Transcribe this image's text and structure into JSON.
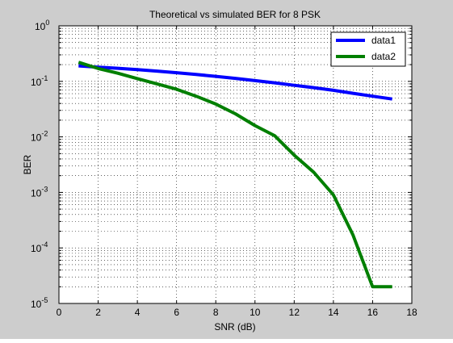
{
  "chart_data": {
    "type": "line",
    "title": "Theoretical vs simulated BER for 8 PSK",
    "xlabel": "SNR (dB)",
    "ylabel": "BER",
    "xlim": [
      0,
      18
    ],
    "ylim": [
      1e-05,
      1
    ],
    "yscale": "log",
    "xticks": [
      "0",
      "2",
      "4",
      "6",
      "8",
      "10",
      "12",
      "14",
      "16",
      "18"
    ],
    "ytick_exponents": [
      "0",
      "-1",
      "-2",
      "-3",
      "-4",
      "-5"
    ],
    "ytick_base": "10",
    "grid": true,
    "legend": "top-right",
    "series": [
      {
        "name": "data1",
        "color": "#0000ff",
        "x": [
          1,
          2,
          3,
          4,
          5,
          6,
          7,
          8,
          9,
          10,
          11,
          12,
          13,
          14,
          15,
          16,
          17
        ],
        "y": [
          0.19,
          0.18,
          0.172,
          0.163,
          0.153,
          0.143,
          0.133,
          0.123,
          0.113,
          0.103,
          0.094,
          0.085,
          0.077,
          0.069,
          0.061,
          0.054,
          0.048
        ]
      },
      {
        "name": "data2",
        "color": "#007f00",
        "x": [
          1,
          2,
          3,
          4,
          5,
          6,
          7,
          8,
          9,
          10,
          11,
          12,
          13,
          14,
          15,
          16,
          17
        ],
        "y": [
          0.22,
          0.17,
          0.14,
          0.112,
          0.09,
          0.072,
          0.054,
          0.039,
          0.026,
          0.016,
          0.0105,
          0.0047,
          0.0023,
          0.0009,
          0.00017,
          2e-05,
          2e-05
        ]
      }
    ]
  }
}
